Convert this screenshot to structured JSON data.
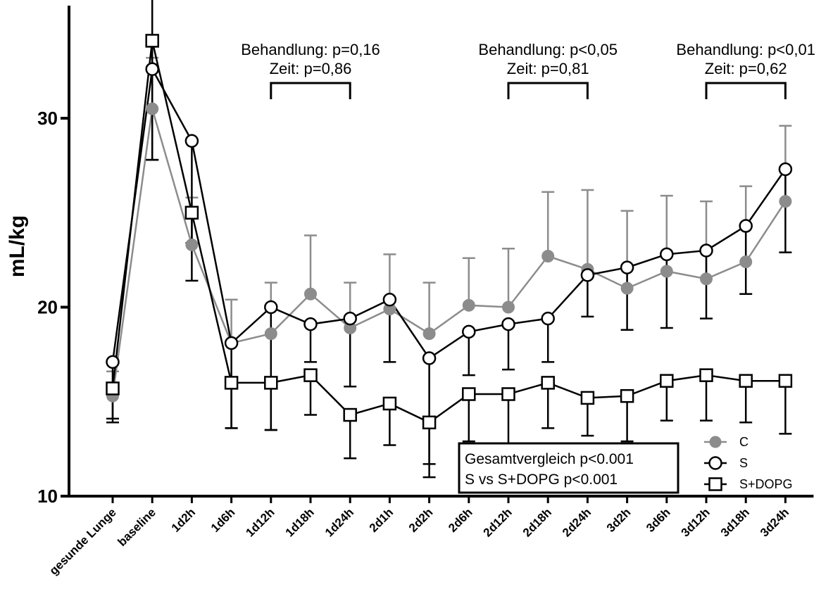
{
  "chart_data": {
    "type": "line",
    "ylabel": "mL/kg",
    "xlabel": "",
    "ylim": [
      10,
      36
    ],
    "yticks": [
      10,
      20,
      30
    ],
    "grid": false,
    "legend_position": "bottom-right",
    "categories": [
      "gesunde Lunge",
      "baseline",
      "1d2h",
      "1d6h",
      "1d12h",
      "1d18h",
      "1d24h",
      "2d1h",
      "2d2h",
      "2d6h",
      "2d12h",
      "2d18h",
      "2d24h",
      "3d2h",
      "3d6h",
      "3d12h",
      "3d18h",
      "3d24h"
    ],
    "series": [
      {
        "name": "C",
        "marker": "filled-circle",
        "color": "#8c8c8c",
        "values": [
          15.3,
          30.5,
          23.3,
          18.1,
          18.6,
          20.7,
          18.9,
          19.9,
          18.6,
          20.1,
          20.0,
          22.7,
          22.0,
          21.0,
          21.9,
          21.5,
          22.4,
          25.6
        ],
        "error": [
          1.3,
          2.7,
          2.5,
          2.3,
          2.7,
          3.1,
          2.4,
          2.9,
          2.7,
          2.5,
          3.1,
          3.4,
          4.2,
          4.1,
          4.0,
          4.1,
          4.0,
          4.0
        ],
        "error_direction": "up"
      },
      {
        "name": "S",
        "marker": "open-circle",
        "color": "#000000",
        "values": [
          17.1,
          32.6,
          28.8,
          18.1,
          20.0,
          19.1,
          19.4,
          20.4,
          17.3,
          18.7,
          19.1,
          19.4,
          21.7,
          22.1,
          22.8,
          23.0,
          24.3,
          27.3
        ],
        "error": [
          3.2,
          4.8,
          7.4,
          4.5,
          6.5,
          2.0,
          3.6,
          3.3,
          6.3,
          2.3,
          2.4,
          2.3,
          2.2,
          3.3,
          3.9,
          3.6,
          3.6,
          4.4
        ],
        "error_direction": "down"
      },
      {
        "name": "S+DOPG",
        "marker": "open-square",
        "color": "#000000",
        "values": [
          15.7,
          34.1,
          25.0,
          16.0,
          16.0,
          16.4,
          14.3,
          14.9,
          13.9,
          15.4,
          15.4,
          16.0,
          15.2,
          15.3,
          16.1,
          16.4,
          16.1,
          16.1
        ],
        "error": [
          1.6,
          6.3,
          1.6,
          2.4,
          2.5,
          2.1,
          2.3,
          2.2,
          2.2,
          2.5,
          2.6,
          2.4,
          2.0,
          2.4,
          2.1,
          2.4,
          2.2,
          2.8
        ],
        "error_direction": "mixed"
      }
    ],
    "annotations": [
      {
        "line1": "Behandlung: p=0,16",
        "line2": "Zeit: p=0,86",
        "from": "1d12h",
        "to": "1d24h"
      },
      {
        "line1": "Behandlung: p<0,05",
        "line2": "Zeit: p=0,81",
        "from": "2d12h",
        "to": "2d24h"
      },
      {
        "line1": "Behandlung: p<0,01",
        "line2": "Zeit: p=0,62",
        "from": "3d12h",
        "to": "3d24h"
      }
    ],
    "stats_box": [
      "Gesamtvergleich p<0.001",
      "S vs S+DOPG p<0.001"
    ]
  }
}
